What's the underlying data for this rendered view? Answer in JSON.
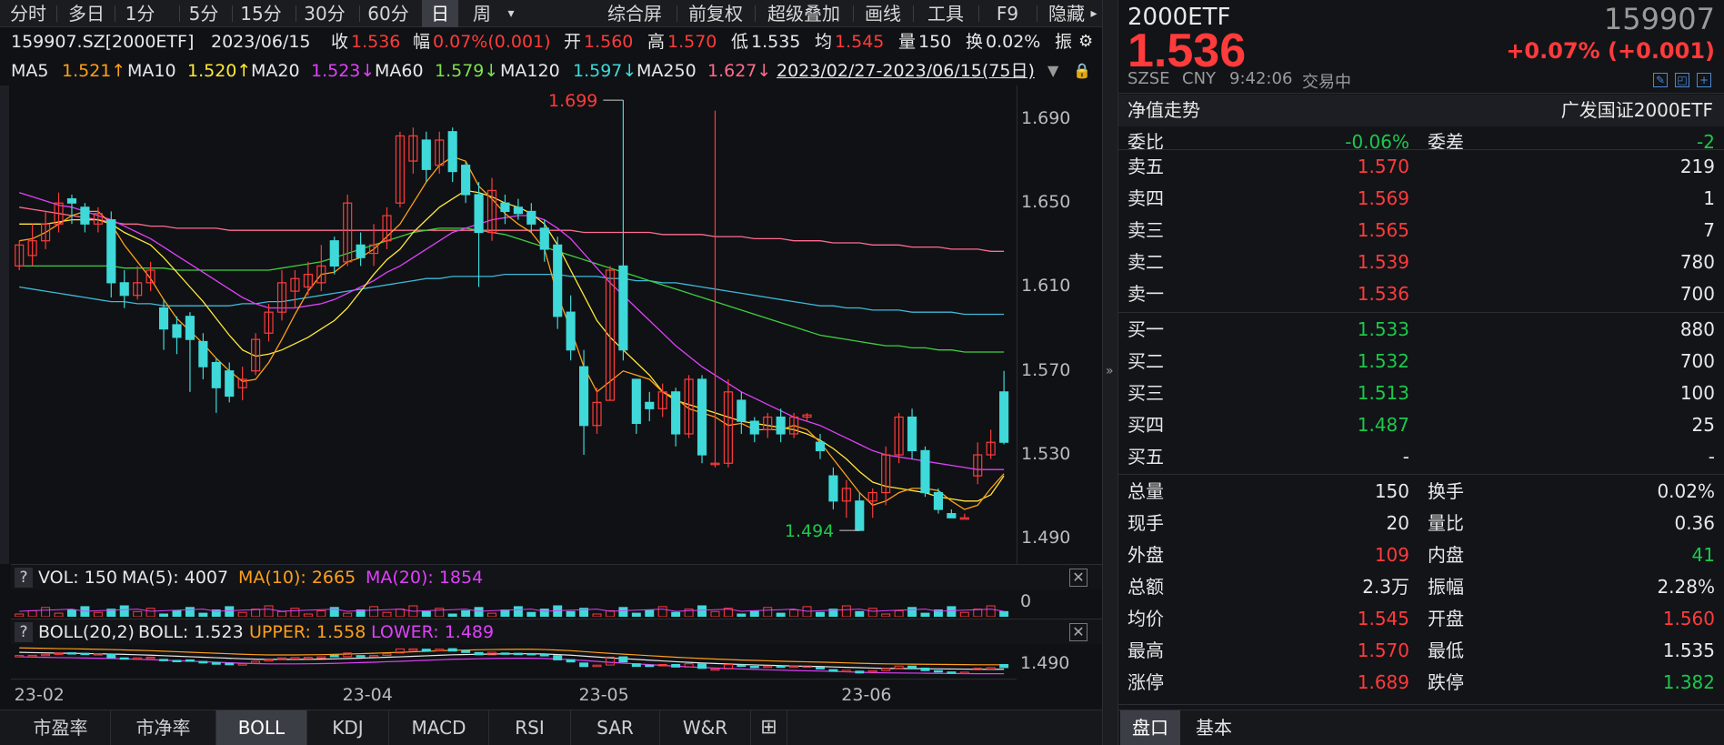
{
  "toolbar": {
    "periods": [
      "分时",
      "多日",
      "1分",
      "5分",
      "15分",
      "30分",
      "60分",
      "日",
      "周"
    ],
    "active_period": "日",
    "dropdown": "▾",
    "tools": [
      "综合屏",
      "前复权",
      "超级叠加",
      "画线",
      "工具",
      "F9",
      "隐藏"
    ],
    "more": "▸"
  },
  "info": {
    "code": "159907.SZ[2000ETF]",
    "date": "2023/06/15",
    "close_label": "收",
    "close": "1.536",
    "range_label": "幅",
    "range": "0.07%(0.001)",
    "open_label": "开",
    "open": "1.560",
    "high_label": "高",
    "high": "1.570",
    "low_label": "低",
    "low": "1.535",
    "avg_label": "均",
    "avg": "1.545",
    "vol_label": "量",
    "vol": "150",
    "turn_label": "换",
    "turn": "0.02%",
    "amp_label": "振"
  },
  "ma": {
    "ma5": "MA5",
    "ma5_val": "1.521↑",
    "ma10": "MA10",
    "ma10_val": "1.520↑",
    "ma20": "MA20",
    "ma20_val": "1.523↓",
    "ma60": "MA60",
    "ma60_val": "1.579↓",
    "ma120": "MA120",
    "ma120_val": "1.597↓",
    "ma250": "MA250",
    "ma250_val": "1.627↓",
    "range": "2023/02/27-2023/06/15(75日)"
  },
  "chart_data": {
    "type": "candlestick",
    "ylim": [
      1.478,
      1.706
    ],
    "yticks": [
      "1.690",
      "1.650",
      "1.610",
      "1.570",
      "1.530",
      "1.490"
    ],
    "ytick_values": [
      1.69,
      1.65,
      1.61,
      1.57,
      1.53,
      1.49
    ],
    "xticks": [
      "23-02",
      "23-04",
      "23-05",
      "23-06"
    ],
    "xtick_index": [
      1,
      26,
      44,
      64
    ],
    "max_label": "1.699",
    "min_label": "1.494",
    "candles": [
      [
        1.62,
        1.63,
        1.632,
        1.618
      ],
      [
        1.625,
        1.632,
        1.64,
        1.62
      ],
      [
        1.632,
        1.64,
        1.646,
        1.628
      ],
      [
        1.64,
        1.65,
        1.655,
        1.636
      ],
      [
        1.652,
        1.65,
        1.654,
        1.64
      ],
      [
        1.648,
        1.64,
        1.65,
        1.636
      ],
      [
        1.64,
        1.645,
        1.648,
        1.636
      ],
      [
        1.642,
        1.612,
        1.646,
        1.605
      ],
      [
        1.612,
        1.606,
        1.618,
        1.6
      ],
      [
        1.606,
        1.612,
        1.62,
        1.604
      ],
      [
        1.612,
        1.618,
        1.622,
        1.608
      ],
      [
        1.6,
        1.59,
        1.604,
        1.58
      ],
      [
        1.592,
        1.586,
        1.596,
        1.578
      ],
      [
        1.596,
        1.585,
        1.598,
        1.56
      ],
      [
        1.584,
        1.572,
        1.588,
        1.566
      ],
      [
        1.574,
        1.562,
        1.576,
        1.55
      ],
      [
        1.57,
        1.558,
        1.574,
        1.555
      ],
      [
        1.562,
        1.566,
        1.572,
        1.556
      ],
      [
        1.57,
        1.585,
        1.588,
        1.568
      ],
      [
        1.588,
        1.598,
        1.602,
        1.584
      ],
      [
        1.598,
        1.612,
        1.618,
        1.594
      ],
      [
        1.608,
        1.614,
        1.618,
        1.6
      ],
      [
        1.61,
        1.616,
        1.622,
        1.606
      ],
      [
        1.612,
        1.62,
        1.63,
        1.608
      ],
      [
        1.632,
        1.62,
        1.634,
        1.616
      ],
      [
        1.622,
        1.65,
        1.654,
        1.62
      ],
      [
        1.63,
        1.624,
        1.636,
        1.62
      ],
      [
        1.626,
        1.63,
        1.64,
        1.62
      ],
      [
        1.632,
        1.644,
        1.648,
        1.628
      ],
      [
        1.65,
        1.682,
        1.684,
        1.648
      ],
      [
        1.67,
        1.682,
        1.686,
        1.664
      ],
      [
        1.68,
        1.666,
        1.684,
        1.66
      ],
      [
        1.668,
        1.68,
        1.684,
        1.664
      ],
      [
        1.684,
        1.665,
        1.686,
        1.66
      ],
      [
        1.668,
        1.654,
        1.67,
        1.65
      ],
      [
        1.654,
        1.636,
        1.66,
        1.61
      ],
      [
        1.636,
        1.656,
        1.662,
        1.632
      ],
      [
        1.65,
        1.646,
        1.654,
        1.64
      ],
      [
        1.648,
        1.645,
        1.652,
        1.642
      ],
      [
        1.646,
        1.64,
        1.65,
        1.636
      ],
      [
        1.638,
        1.628,
        1.642,
        1.622
      ],
      [
        1.63,
        1.596,
        1.634,
        1.59
      ],
      [
        1.598,
        1.58,
        1.606,
        1.575
      ],
      [
        1.572,
        1.544,
        1.58,
        1.53
      ],
      [
        1.544,
        1.555,
        1.562,
        1.54
      ],
      [
        1.556,
        1.618,
        1.62,
        1.556
      ],
      [
        1.62,
        1.58,
        1.699,
        1.575
      ],
      [
        1.566,
        1.545,
        1.566,
        1.54
      ],
      [
        1.555,
        1.552,
        1.56,
        1.546
      ],
      [
        1.552,
        1.56,
        1.564,
        1.548
      ],
      [
        1.56,
        1.54,
        1.562,
        1.534
      ],
      [
        1.54,
        1.566,
        1.568,
        1.538
      ],
      [
        1.566,
        1.53,
        1.568,
        1.526
      ],
      [
        1.526,
        1.526,
        1.694,
        1.524
      ],
      [
        1.526,
        1.56,
        1.566,
        1.524
      ],
      [
        1.556,
        1.546,
        1.56,
        1.54
      ],
      [
        1.546,
        1.54,
        1.548,
        1.536
      ],
      [
        1.542,
        1.548,
        1.55,
        1.538
      ],
      [
        1.548,
        1.54,
        1.552,
        1.536
      ],
      [
        1.54,
        1.548,
        1.55,
        1.538
      ],
      [
        1.548,
        1.549,
        1.55,
        1.546
      ],
      [
        1.536,
        1.532,
        1.54,
        1.528
      ],
      [
        1.52,
        1.508,
        1.524,
        1.504
      ],
      [
        1.508,
        1.514,
        1.518,
        1.5
      ],
      [
        1.508,
        1.494,
        1.512,
        1.494
      ],
      [
        1.508,
        1.512,
        1.514,
        1.5
      ],
      [
        1.512,
        1.53,
        1.534,
        1.506
      ],
      [
        1.53,
        1.548,
        1.55,
        1.526
      ],
      [
        1.548,
        1.532,
        1.552,
        1.528
      ],
      [
        1.532,
        1.512,
        1.534,
        1.51
      ],
      [
        1.512,
        1.504,
        1.514,
        1.502
      ],
      [
        1.502,
        1.5,
        1.504,
        1.5
      ],
      [
        1.5,
        1.5,
        1.502,
        1.5
      ],
      [
        1.52,
        1.53,
        1.536,
        1.516
      ],
      [
        1.53,
        1.536,
        1.542,
        1.528
      ],
      [
        1.56,
        1.536,
        1.57,
        1.535
      ]
    ],
    "ma5": [
      1.632,
      1.633,
      1.636,
      1.64,
      1.644,
      1.646,
      1.646,
      1.64,
      1.63,
      1.622,
      1.614,
      1.604,
      1.595,
      1.589,
      1.583,
      1.576,
      1.57,
      1.565,
      1.566,
      1.574,
      1.585,
      1.597,
      1.608,
      1.616,
      1.617,
      1.622,
      1.624,
      1.628,
      1.634,
      1.64,
      1.65,
      1.66,
      1.668,
      1.672,
      1.67,
      1.658,
      1.652,
      1.645,
      1.64,
      1.636,
      1.628,
      1.606,
      1.59,
      1.572,
      1.56,
      1.565,
      1.57,
      1.568,
      1.566,
      1.56,
      1.557,
      1.552,
      1.55,
      1.548,
      1.544,
      1.545,
      1.542,
      1.542,
      1.542,
      1.544,
      1.542,
      1.536,
      1.528,
      1.52,
      1.512,
      1.506,
      1.508,
      1.512,
      1.514,
      1.514,
      1.513,
      1.508,
      1.504,
      1.506,
      1.514,
      1.521
    ],
    "ma10": [
      1.64,
      1.64,
      1.64,
      1.641,
      1.642,
      1.642,
      1.642,
      1.64,
      1.636,
      1.633,
      1.63,
      1.624,
      1.617,
      1.61,
      1.603,
      1.595,
      1.587,
      1.58,
      1.577,
      1.578,
      1.58,
      1.583,
      1.586,
      1.59,
      1.594,
      1.6,
      1.608,
      1.616,
      1.623,
      1.628,
      1.636,
      1.642,
      1.648,
      1.652,
      1.656,
      1.655,
      1.653,
      1.65,
      1.648,
      1.645,
      1.64,
      1.63,
      1.618,
      1.606,
      1.594,
      1.586,
      1.58,
      1.574,
      1.568,
      1.56,
      1.556,
      1.554,
      1.552,
      1.55,
      1.548,
      1.546,
      1.545,
      1.544,
      1.543,
      1.542,
      1.54,
      1.537,
      1.533,
      1.528,
      1.522,
      1.517,
      1.515,
      1.514,
      1.513,
      1.512,
      1.51,
      1.509,
      1.508,
      1.508,
      1.511,
      1.52
    ],
    "ma20": [
      1.655,
      1.653,
      1.651,
      1.649,
      1.648,
      1.646,
      1.644,
      1.642,
      1.639,
      1.636,
      1.633,
      1.629,
      1.625,
      1.621,
      1.617,
      1.613,
      1.609,
      1.605,
      1.602,
      1.6,
      1.6,
      1.6,
      1.601,
      1.602,
      1.604,
      1.607,
      1.61,
      1.613,
      1.617,
      1.62,
      1.624,
      1.628,
      1.632,
      1.636,
      1.638,
      1.64,
      1.642,
      1.643,
      1.644,
      1.644,
      1.642,
      1.638,
      1.633,
      1.626,
      1.619,
      1.612,
      1.606,
      1.6,
      1.594,
      1.588,
      1.582,
      1.577,
      1.572,
      1.568,
      1.564,
      1.56,
      1.557,
      1.554,
      1.551,
      1.548,
      1.546,
      1.544,
      1.541,
      1.538,
      1.535,
      1.532,
      1.53,
      1.529,
      1.528,
      1.527,
      1.526,
      1.525,
      1.524,
      1.523,
      1.523,
      1.523
    ],
    "ma60": [
      1.62,
      1.62,
      1.62,
      1.62,
      1.62,
      1.62,
      1.62,
      1.62,
      1.619,
      1.619,
      1.619,
      1.619,
      1.618,
      1.618,
      1.618,
      1.618,
      1.618,
      1.618,
      1.618,
      1.618,
      1.619,
      1.62,
      1.621,
      1.622,
      1.624,
      1.626,
      1.628,
      1.63,
      1.632,
      1.634,
      1.636,
      1.637,
      1.638,
      1.638,
      1.638,
      1.637,
      1.636,
      1.635,
      1.633,
      1.631,
      1.629,
      1.627,
      1.625,
      1.623,
      1.621,
      1.619,
      1.617,
      1.615,
      1.613,
      1.611,
      1.609,
      1.607,
      1.605,
      1.603,
      1.601,
      1.599,
      1.597,
      1.595,
      1.593,
      1.591,
      1.589,
      1.587,
      1.586,
      1.585,
      1.584,
      1.583,
      1.582,
      1.582,
      1.581,
      1.581,
      1.58,
      1.58,
      1.579,
      1.579,
      1.579,
      1.579
    ],
    "ma120": [
      1.61,
      1.609,
      1.608,
      1.607,
      1.606,
      1.605,
      1.604,
      1.603,
      1.603,
      1.602,
      1.602,
      1.601,
      1.601,
      1.601,
      1.601,
      1.601,
      1.601,
      1.602,
      1.602,
      1.603,
      1.603,
      1.604,
      1.605,
      1.606,
      1.607,
      1.608,
      1.609,
      1.61,
      1.611,
      1.612,
      1.613,
      1.614,
      1.614,
      1.615,
      1.615,
      1.615,
      1.615,
      1.616,
      1.616,
      1.616,
      1.616,
      1.616,
      1.615,
      1.615,
      1.615,
      1.614,
      1.614,
      1.613,
      1.613,
      1.612,
      1.612,
      1.611,
      1.61,
      1.609,
      1.608,
      1.607,
      1.606,
      1.605,
      1.604,
      1.603,
      1.602,
      1.601,
      1.601,
      1.6,
      1.6,
      1.599,
      1.599,
      1.599,
      1.598,
      1.598,
      1.598,
      1.598,
      1.597,
      1.597,
      1.597,
      1.597
    ],
    "ma250": [
      1.648,
      1.647,
      1.646,
      1.645,
      1.644,
      1.643,
      1.642,
      1.641,
      1.64,
      1.64,
      1.639,
      1.639,
      1.638,
      1.638,
      1.638,
      1.638,
      1.637,
      1.637,
      1.637,
      1.637,
      1.637,
      1.637,
      1.637,
      1.637,
      1.637,
      1.637,
      1.637,
      1.637,
      1.637,
      1.637,
      1.637,
      1.637,
      1.637,
      1.637,
      1.637,
      1.637,
      1.637,
      1.637,
      1.637,
      1.637,
      1.637,
      1.637,
      1.637,
      1.636,
      1.636,
      1.636,
      1.636,
      1.636,
      1.636,
      1.635,
      1.635,
      1.635,
      1.635,
      1.634,
      1.634,
      1.634,
      1.633,
      1.633,
      1.633,
      1.632,
      1.632,
      1.632,
      1.631,
      1.631,
      1.631,
      1.63,
      1.63,
      1.63,
      1.629,
      1.629,
      1.629,
      1.628,
      1.628,
      1.628,
      1.627,
      1.627
    ],
    "volume_max": 4007,
    "boll_axis_label": "1.490",
    "vol_axis_label": "0"
  },
  "vol": {
    "q": "?",
    "label": "VOL: 150",
    "ma5": "MA(5): 4007",
    "ma10": "MA(10): 2665",
    "ma20": "MA(20): 1854",
    "close": "✕"
  },
  "boll": {
    "q": "?",
    "label": "BOLL(20,2)",
    "boll": "BOLL: 1.523",
    "upper": "UPPER: 1.558",
    "lower": "LOWER: 1.489",
    "close": "✕"
  },
  "bottom_tabs": [
    "市盈率",
    "市净率",
    "BOLL",
    "KDJ",
    "MACD",
    "RSI",
    "SAR",
    "W&R",
    "⊞"
  ],
  "active_bottom_tab": "BOLL",
  "quote": {
    "name": "2000ETF",
    "code": "159907",
    "price": "1.536",
    "change": "+0.07% (+0.001)",
    "exchange": "SZSE",
    "currency": "CNY",
    "time": "9:42:06",
    "status": "交易中",
    "nav_label": "净值走势",
    "index_name": "广发国证2000ETF",
    "wb_label": "委比",
    "wb": "-0.06%",
    "wc_label": "委差",
    "wc": "-2",
    "asks": [
      {
        "label": "卖五",
        "price": "1.570",
        "vol": "219"
      },
      {
        "label": "卖四",
        "price": "1.569",
        "vol": "1"
      },
      {
        "label": "卖三",
        "price": "1.565",
        "vol": "7"
      },
      {
        "label": "卖二",
        "price": "1.539",
        "vol": "780"
      },
      {
        "label": "卖一",
        "price": "1.536",
        "vol": "700"
      }
    ],
    "bids": [
      {
        "label": "买一",
        "price": "1.533",
        "vol": "880"
      },
      {
        "label": "买二",
        "price": "1.532",
        "vol": "700"
      },
      {
        "label": "买三",
        "price": "1.513",
        "vol": "100"
      },
      {
        "label": "买四",
        "price": "1.487",
        "vol": "25"
      },
      {
        "label": "买五",
        "price": "-",
        "vol": "-"
      }
    ],
    "stats": [
      {
        "l1": "总量",
        "v1": "150",
        "c1": "white",
        "l2": "换手",
        "v2": "0.02%",
        "c2": "white"
      },
      {
        "l1": "现手",
        "v1": "20",
        "c1": "white",
        "l2": "量比",
        "v2": "0.36",
        "c2": "white"
      },
      {
        "l1": "外盘",
        "v1": "109",
        "c1": "red",
        "l2": "内盘",
        "v2": "41",
        "c2": "green"
      },
      {
        "l1": "总额",
        "v1": "2.3万",
        "c1": "white",
        "l2": "振幅",
        "v2": "2.28%",
        "c2": "white"
      },
      {
        "l1": "均价",
        "v1": "1.545",
        "c1": "red",
        "l2": "开盘",
        "v2": "1.560",
        "c2": "red"
      },
      {
        "l1": "最高",
        "v1": "1.570",
        "c1": "red",
        "l2": "最低",
        "v2": "1.535",
        "c2": "white"
      },
      {
        "l1": "涨停",
        "v1": "1.689",
        "c1": "red",
        "l2": "跌停",
        "v2": "1.382",
        "c2": "green"
      }
    ],
    "tabs": [
      "盘口",
      "基本"
    ],
    "active_tab": "盘口"
  },
  "colors": {
    "up": "#ff3b3b",
    "down": "#3fd9d9",
    "ma5": "#ff9f1a",
    "ma10": "#ffe83a",
    "ma20": "#e040fb",
    "ma60": "#3fcf3f",
    "ma120": "#3fb8d9",
    "ma250": "#ff6b8f"
  }
}
